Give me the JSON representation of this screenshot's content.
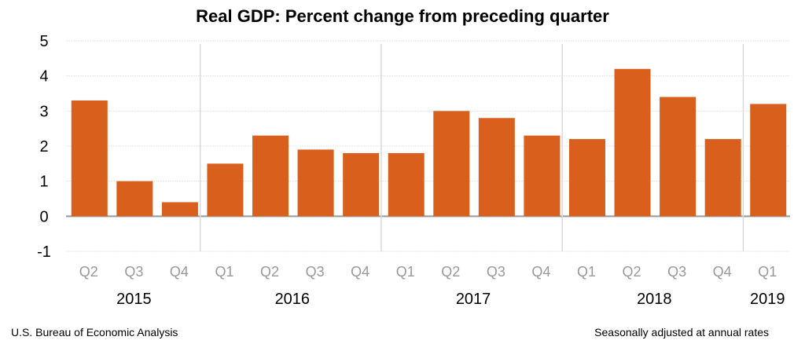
{
  "chart_data": {
    "type": "bar",
    "title": "Real GDP:  Percent change from preceding quarter",
    "categories": [
      "Q2",
      "Q3",
      "Q4",
      "Q1",
      "Q2",
      "Q3",
      "Q4",
      "Q1",
      "Q2",
      "Q3",
      "Q4",
      "Q1",
      "Q2",
      "Q3",
      "Q4",
      "Q1"
    ],
    "years": [
      {
        "label": "2015",
        "start": 0,
        "count": 3
      },
      {
        "label": "2016",
        "start": 3,
        "count": 4
      },
      {
        "label": "2017",
        "start": 7,
        "count": 4
      },
      {
        "label": "2018",
        "start": 11,
        "count": 4
      },
      {
        "label": "2019",
        "start": 15,
        "count": 1
      }
    ],
    "values": [
      3.3,
      1.0,
      0.4,
      1.5,
      2.3,
      1.9,
      1.8,
      1.8,
      3.0,
      2.8,
      2.3,
      2.2,
      4.2,
      3.4,
      2.2,
      3.2
    ],
    "ylim": [
      -1,
      5
    ],
    "yticks": [
      -1,
      0,
      1,
      2,
      3,
      4,
      5
    ],
    "grid": true,
    "bar_color": "#D9601C",
    "xlabel": "",
    "ylabel": ""
  },
  "footer": {
    "source": "U.S. Bureau of Economic Analysis",
    "note": "Seasonally adjusted at annual rates"
  }
}
